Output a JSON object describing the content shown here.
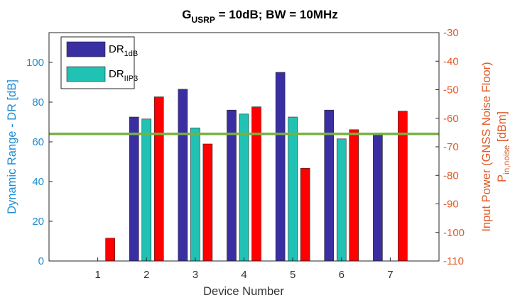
{
  "chart_data": {
    "type": "bar",
    "title_parts": {
      "g": "G",
      "g_sub": "USRP",
      "rest": " = 10dB; BW = 10MHz"
    },
    "xlabel": "Device Number",
    "ylabel_left": "Dynamic Range - DR [dB]",
    "ylabel_right_line1": "Input Power (GNSS Noise Floor)",
    "ylabel_right_line2_main": "P",
    "ylabel_right_line2_sub": "in,noise",
    "ylabel_right_line2_unit": " [dBm]",
    "categories": [
      "1",
      "2",
      "3",
      "4",
      "5",
      "6",
      "7"
    ],
    "ylim_left": [
      0,
      115
    ],
    "yticks_left": [
      0,
      20,
      40,
      60,
      80,
      100
    ],
    "ylim_right": [
      -110,
      -30
    ],
    "yticks_right": [
      -110,
      -100,
      -90,
      -80,
      -70,
      -60,
      -50,
      -40,
      -30
    ],
    "series": [
      {
        "name_main": "DR",
        "name_sub": "1dB",
        "axis": "left",
        "color": "#3a2ea3",
        "values": [
          null,
          72.5,
          86.5,
          76,
          95,
          76,
          64
        ]
      },
      {
        "name_main": "DR",
        "name_sub": "IIP3",
        "axis": "left",
        "color": "#20c2b4",
        "values": [
          null,
          71.5,
          67,
          74,
          72.5,
          61.5,
          null
        ]
      },
      {
        "axis": "right",
        "color": "#ff0000",
        "values": [
          -102,
          -52.5,
          -69,
          -56,
          -77.5,
          -64,
          -57.5
        ]
      }
    ],
    "reference_line": {
      "axis": "left",
      "value": 64,
      "color": "#77b140"
    },
    "colors": {
      "left_axis": "#1f8bd0",
      "right_axis": "#e05a26"
    },
    "legend_position": "top-left",
    "grid": false
  }
}
